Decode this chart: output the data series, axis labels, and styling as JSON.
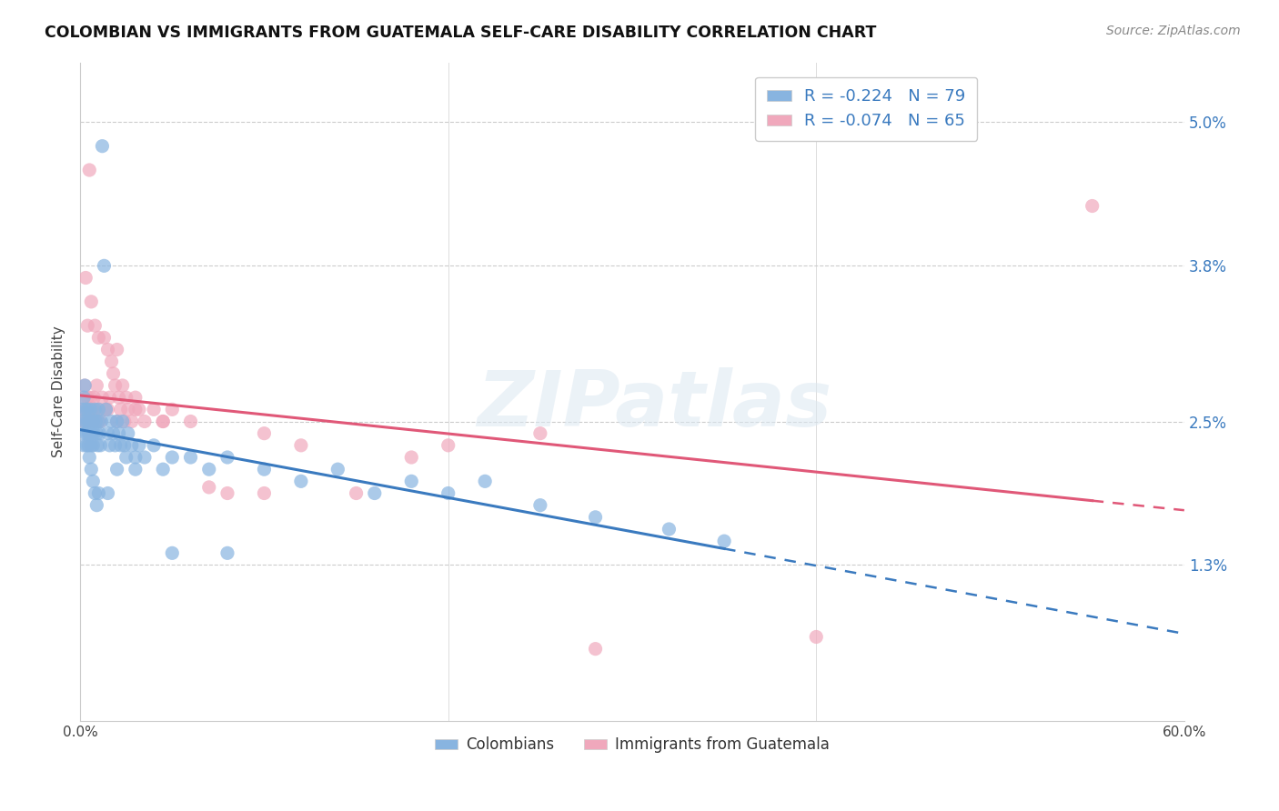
{
  "title": "COLOMBIAN VS IMMIGRANTS FROM GUATEMALA SELF-CARE DISABILITY CORRELATION CHART",
  "source": "Source: ZipAtlas.com",
  "ylabel": "Self-Care Disability",
  "ytick_labels": [
    "1.3%",
    "2.5%",
    "3.8%",
    "5.0%"
  ],
  "ytick_values": [
    1.3,
    2.5,
    3.8,
    5.0
  ],
  "xlim": [
    0.0,
    60.0
  ],
  "ylim": [
    0.0,
    5.5
  ],
  "legend_r_blue": "R = -0.224   N = 79",
  "legend_r_pink": "R = -0.074   N = 65",
  "colombians_legend": "Colombians",
  "guatemalans_legend": "Immigrants from Guatemala",
  "blue_scatter_color": "#88b4e0",
  "pink_scatter_color": "#f0a8bc",
  "blue_line_color": "#3a7abf",
  "pink_line_color": "#e05878",
  "watermark": "ZIPatlas",
  "blue_solid_end": 35.0,
  "pink_solid_end": 55.0,
  "colombians_x": [
    0.1,
    0.15,
    0.2,
    0.2,
    0.25,
    0.25,
    0.3,
    0.3,
    0.35,
    0.35,
    0.4,
    0.4,
    0.45,
    0.45,
    0.5,
    0.5,
    0.55,
    0.6,
    0.6,
    0.65,
    0.7,
    0.7,
    0.75,
    0.8,
    0.85,
    0.9,
    0.95,
    1.0,
    1.0,
    1.05,
    1.1,
    1.15,
    1.2,
    1.3,
    1.4,
    1.5,
    1.6,
    1.7,
    1.8,
    1.9,
    2.0,
    2.1,
    2.2,
    2.3,
    2.4,
    2.5,
    2.6,
    2.8,
    3.0,
    3.2,
    3.5,
    4.0,
    4.5,
    5.0,
    6.0,
    7.0,
    8.0,
    10.0,
    12.0,
    14.0,
    16.0,
    18.0,
    20.0,
    22.0,
    25.0,
    28.0,
    32.0,
    35.0,
    0.5,
    0.6,
    0.7,
    0.8,
    0.9,
    1.0,
    1.5,
    2.0,
    3.0,
    5.0,
    8.0
  ],
  "colombians_y": [
    2.6,
    2.5,
    2.7,
    2.3,
    2.8,
    2.4,
    2.5,
    2.6,
    2.4,
    2.3,
    2.5,
    2.6,
    2.4,
    2.3,
    2.5,
    2.4,
    2.6,
    2.5,
    2.3,
    2.4,
    2.5,
    2.3,
    2.4,
    2.6,
    2.5,
    2.4,
    2.3,
    2.5,
    2.6,
    2.4,
    2.3,
    2.5,
    4.8,
    3.8,
    2.6,
    2.4,
    2.3,
    2.5,
    2.4,
    2.3,
    2.5,
    2.4,
    2.3,
    2.5,
    2.3,
    2.2,
    2.4,
    2.3,
    2.2,
    2.3,
    2.2,
    2.3,
    2.1,
    2.2,
    2.2,
    2.1,
    2.2,
    2.1,
    2.0,
    2.1,
    1.9,
    2.0,
    1.9,
    2.0,
    1.8,
    1.7,
    1.6,
    1.5,
    2.2,
    2.1,
    2.0,
    1.9,
    1.8,
    1.9,
    1.9,
    2.1,
    2.1,
    1.4,
    1.4
  ],
  "guatemalans_x": [
    0.1,
    0.15,
    0.2,
    0.25,
    0.3,
    0.35,
    0.4,
    0.45,
    0.5,
    0.55,
    0.6,
    0.65,
    0.7,
    0.75,
    0.8,
    0.85,
    0.9,
    0.95,
    1.0,
    1.1,
    1.2,
    1.3,
    1.4,
    1.5,
    1.6,
    1.7,
    1.8,
    1.9,
    2.0,
    2.1,
    2.2,
    2.3,
    2.4,
    2.5,
    2.6,
    2.8,
    3.0,
    3.2,
    3.5,
    4.0,
    4.5,
    5.0,
    6.0,
    8.0,
    10.0,
    12.0,
    15.0,
    20.0,
    25.0,
    55.0,
    0.3,
    0.4,
    0.5,
    0.6,
    0.8,
    1.0,
    1.5,
    2.0,
    3.0,
    4.5,
    7.0,
    10.0,
    18.0,
    28.0,
    40.0
  ],
  "guatemalans_y": [
    2.6,
    2.7,
    2.5,
    2.8,
    2.6,
    2.5,
    2.7,
    2.6,
    2.5,
    2.7,
    2.6,
    2.5,
    2.6,
    2.7,
    2.5,
    2.6,
    2.8,
    2.5,
    2.6,
    2.5,
    2.7,
    3.2,
    2.6,
    3.1,
    2.7,
    3.0,
    2.9,
    2.8,
    3.1,
    2.7,
    2.6,
    2.8,
    2.5,
    2.7,
    2.6,
    2.5,
    2.7,
    2.6,
    2.5,
    2.6,
    2.5,
    2.6,
    2.5,
    1.9,
    2.4,
    2.3,
    1.9,
    2.3,
    2.4,
    4.3,
    3.7,
    3.3,
    4.6,
    3.5,
    3.3,
    3.2,
    2.6,
    2.5,
    2.6,
    2.5,
    1.95,
    1.9,
    2.2,
    0.6,
    0.7
  ]
}
